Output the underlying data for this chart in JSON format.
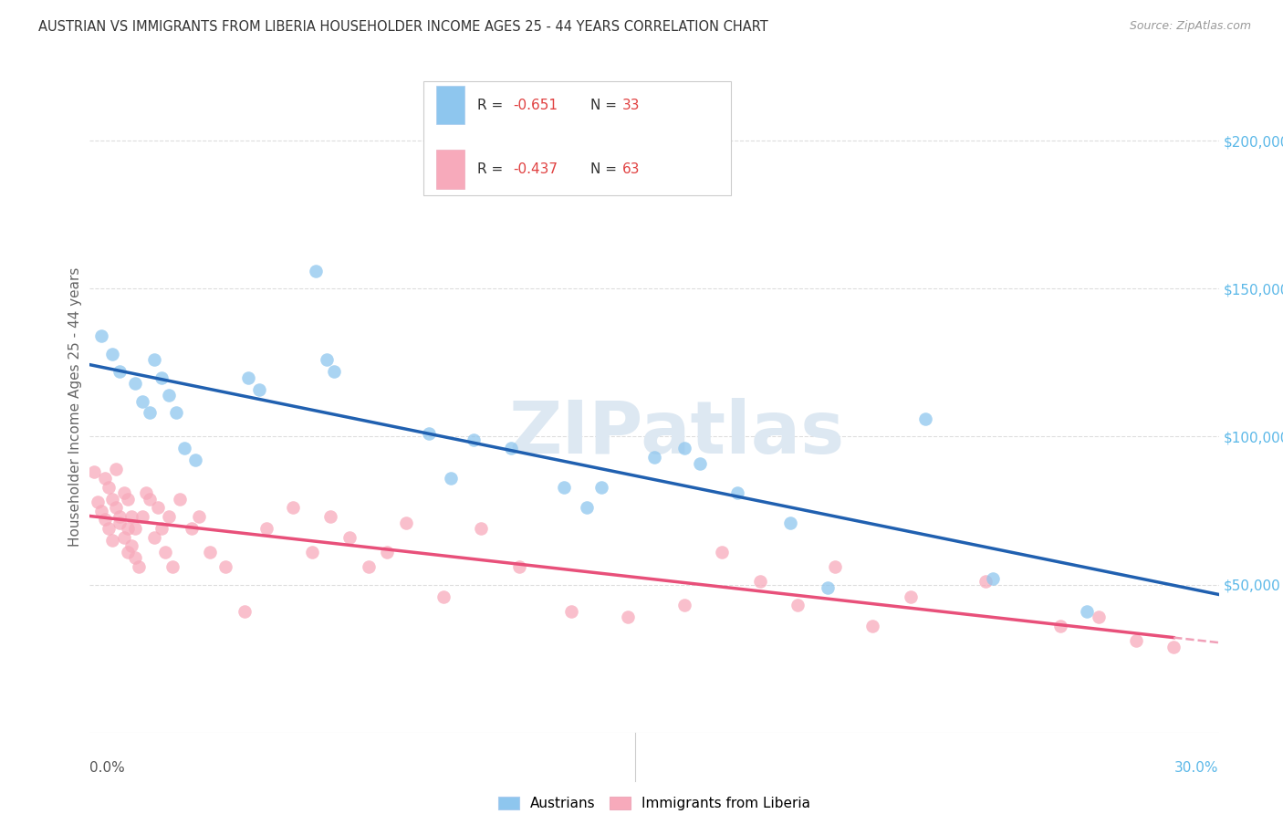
{
  "title": "AUSTRIAN VS IMMIGRANTS FROM LIBERIA HOUSEHOLDER INCOME AGES 25 - 44 YEARS CORRELATION CHART",
  "source": "Source: ZipAtlas.com",
  "ylabel": "Householder Income Ages 25 - 44 years",
  "xlim": [
    0.0,
    0.3
  ],
  "ylim": [
    0,
    220000
  ],
  "yticks": [
    0,
    50000,
    100000,
    150000,
    200000
  ],
  "color_austrians": "#8EC6EE",
  "color_liberia": "#F7AABB",
  "color_line_austrians": "#2060B0",
  "color_line_liberia": "#E8507A",
  "color_dashed_liberia": "#F0A0B8",
  "color_right_axis": "#5BB8E8",
  "watermark_color": "#DDE8F2",
  "austrians_x": [
    0.003,
    0.006,
    0.008,
    0.012,
    0.014,
    0.016,
    0.017,
    0.019,
    0.021,
    0.023,
    0.025,
    0.028,
    0.042,
    0.045,
    0.06,
    0.063,
    0.065,
    0.09,
    0.096,
    0.102,
    0.112,
    0.126,
    0.132,
    0.136,
    0.15,
    0.158,
    0.162,
    0.172,
    0.186,
    0.196,
    0.222,
    0.24,
    0.265
  ],
  "austrians_y": [
    134000,
    128000,
    122000,
    118000,
    112000,
    108000,
    126000,
    120000,
    114000,
    108000,
    96000,
    92000,
    120000,
    116000,
    156000,
    126000,
    122000,
    101000,
    86000,
    99000,
    96000,
    83000,
    76000,
    83000,
    93000,
    96000,
    91000,
    81000,
    71000,
    49000,
    106000,
    52000,
    41000
  ],
  "liberia_x": [
    0.001,
    0.002,
    0.003,
    0.004,
    0.004,
    0.005,
    0.005,
    0.006,
    0.006,
    0.007,
    0.007,
    0.008,
    0.008,
    0.009,
    0.009,
    0.01,
    0.01,
    0.01,
    0.011,
    0.011,
    0.012,
    0.012,
    0.013,
    0.014,
    0.015,
    0.016,
    0.017,
    0.018,
    0.019,
    0.02,
    0.021,
    0.022,
    0.024,
    0.027,
    0.029,
    0.032,
    0.036,
    0.041,
    0.047,
    0.054,
    0.059,
    0.064,
    0.069,
    0.074,
    0.079,
    0.084,
    0.094,
    0.104,
    0.114,
    0.128,
    0.143,
    0.158,
    0.168,
    0.178,
    0.188,
    0.198,
    0.208,
    0.218,
    0.238,
    0.258,
    0.268,
    0.278,
    0.288
  ],
  "liberia_y": [
    88000,
    78000,
    75000,
    86000,
    72000,
    83000,
    69000,
    79000,
    65000,
    89000,
    76000,
    71000,
    73000,
    81000,
    66000,
    61000,
    79000,
    69000,
    73000,
    63000,
    59000,
    69000,
    56000,
    73000,
    81000,
    79000,
    66000,
    76000,
    69000,
    61000,
    73000,
    56000,
    79000,
    69000,
    73000,
    61000,
    56000,
    41000,
    69000,
    76000,
    61000,
    73000,
    66000,
    56000,
    61000,
    71000,
    46000,
    69000,
    56000,
    41000,
    39000,
    43000,
    61000,
    51000,
    43000,
    56000,
    36000,
    46000,
    51000,
    36000,
    39000,
    31000,
    29000
  ],
  "bg_color": "#FFFFFF",
  "grid_color": "#DDDDDD"
}
